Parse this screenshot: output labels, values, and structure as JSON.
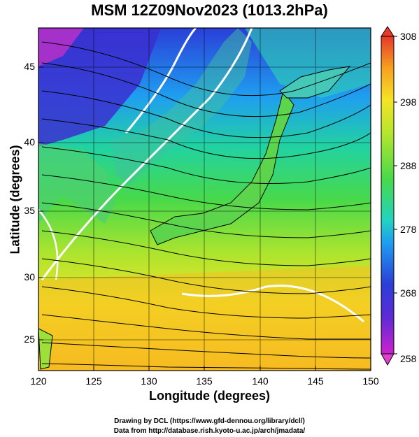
{
  "title": "MSM 12Z09Nov2023 (1013.2hPa)",
  "map": {
    "x_label": "Longitude (degrees)",
    "y_label": "Latitude  (degrees)",
    "lon_ticks": [
      "120",
      "125",
      "130",
      "135",
      "140",
      "145",
      "150"
    ],
    "lat_ticks": [
      "25",
      "30",
      "35",
      "40",
      "45"
    ]
  },
  "colorbar": {
    "ticks": [
      "308",
      "298",
      "288",
      "278",
      "268",
      "258"
    ],
    "min": 258,
    "max": 308
  },
  "credits": {
    "line1": "Drawing by DCL (https://www.gfd-dennou.org/library/dcl/)",
    "line2": "Data from http://database.rish.kyoto-u.ac.jp/arch/jmadata/"
  }
}
